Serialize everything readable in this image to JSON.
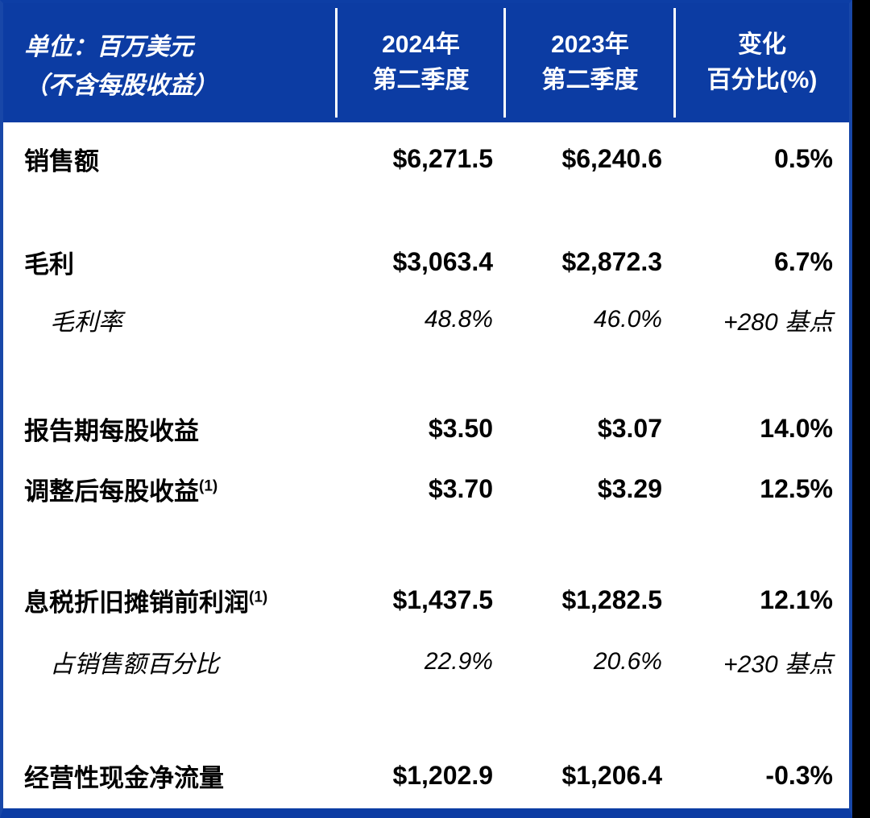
{
  "meta": {
    "accent_blue": "#0C3CA3",
    "border_blue": "#1847A8",
    "header_text_color": "#FFFFFF",
    "body_text_color": "#000000",
    "body_background": "#FFFFFF",
    "page_background": "#000000"
  },
  "header": {
    "unit_label_line1": "单位：百万美元",
    "unit_label_line2": "（不含每股收益）",
    "columns": [
      {
        "line1": "2024年",
        "line2": "第二季度"
      },
      {
        "line1": "2023年",
        "line2": "第二季度"
      },
      {
        "line1": "变化",
        "line2": "百分比(%)"
      }
    ]
  },
  "rows": [
    {
      "label": "销售额",
      "sup": "",
      "q2_2024": "$6,271.5",
      "q2_2023": "$6,240.6",
      "change": "0.5%"
    },
    {
      "label": "毛利",
      "sup": "",
      "q2_2024": "$3,063.4",
      "q2_2023": "$2,872.3",
      "change": "6.7%"
    },
    {
      "label": "毛利率",
      "sup": "",
      "q2_2024": "48.8%",
      "q2_2023": "46.0%",
      "change": "+280 基点"
    },
    {
      "label": "报告期每股收益",
      "sup": "",
      "q2_2024": "$3.50",
      "q2_2023": "$3.07",
      "change": "14.0%"
    },
    {
      "label": "调整后每股收益",
      "sup": "(1)",
      "q2_2024": "$3.70",
      "q2_2023": "$3.29",
      "change": "12.5%"
    },
    {
      "label": "息税折旧摊销前利润",
      "sup": "(1)",
      "q2_2024": "$1,437.5",
      "q2_2023": "$1,282.5",
      "change": "12.1%"
    },
    {
      "label": "占销售额百分比",
      "sup": "",
      "q2_2024": "22.9%",
      "q2_2023": "20.6%",
      "change": "+230 基点"
    },
    {
      "label": "经营性现金净流量",
      "sup": "",
      "q2_2024": "$1,202.9",
      "q2_2023": "$1,206.4",
      "change": "-0.3%"
    }
  ]
}
